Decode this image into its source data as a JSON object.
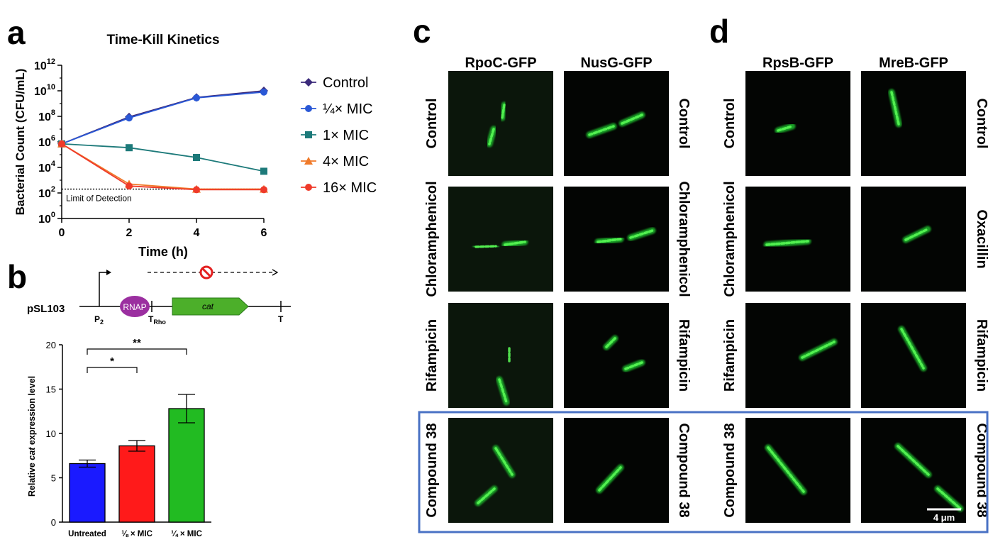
{
  "panels": {
    "a": {
      "letter": "a",
      "detection_label": "Limit of Detection",
      "detection_level": 200,
      "chart_data": {
        "type": "line",
        "title": "Time-Kill Kinetics",
        "xlabel": "Time (h)",
        "ylabel": "Bacterial Count (CFU/mL)",
        "x": [
          0,
          2,
          4,
          6
        ],
        "xlim": [
          0,
          6
        ],
        "ylim": [
          1,
          1000000000000
        ],
        "yscale": "log",
        "x_ticks": [
          "0",
          "2",
          "4",
          "6"
        ],
        "y_ticks": [
          {
            "base": "10",
            "exp": "0"
          },
          {
            "base": "10",
            "exp": "2"
          },
          {
            "base": "10",
            "exp": "4"
          },
          {
            "base": "10",
            "exp": "6"
          },
          {
            "base": "10",
            "exp": "8"
          },
          {
            "base": "10",
            "exp": "10"
          },
          {
            "base": "10",
            "exp": "12"
          }
        ],
        "legend_position": "right",
        "series": [
          {
            "name": "Control",
            "color": "#3b2a7a",
            "marker": "diamond",
            "values": [
              700000,
              90000000,
              3000000000,
              10000000000
            ]
          },
          {
            "name": "¼× MIC",
            "color": "#2a58d6",
            "marker": "circle",
            "values": [
              700000,
              75000000,
              2800000000,
              8000000000
            ]
          },
          {
            "name": "1× MIC",
            "color": "#1d7a7a",
            "marker": "square",
            "values": [
              700000,
              350000,
              60000,
              5000
            ]
          },
          {
            "name": "4× MIC",
            "color": "#f07a2a",
            "marker": "triangle",
            "values": [
              700000,
              500,
              200,
              200
            ]
          },
          {
            "name": "16× MIC",
            "color": "#ef3a2a",
            "marker": "circle",
            "values": [
              700000,
              350,
              180,
              180
            ]
          }
        ]
      }
    },
    "b": {
      "letter": "b",
      "plasmid": {
        "name": "pSL103",
        "promoter": "P",
        "promoter_sub": "2",
        "rnap": "RNAP",
        "terminator1": "T",
        "terminator1_sub": "Rho",
        "gene": "cat",
        "terminator2": "T",
        "colors": {
          "rnap": "#9b2fa0",
          "gene": "#4caf2a",
          "block": "#e32020"
        }
      },
      "significance": [
        "*",
        "**"
      ],
      "chart_data": {
        "type": "bar",
        "title": "",
        "xlabel": "",
        "ylabel_parts": [
          "Relative ",
          "cat",
          " expression level"
        ],
        "categories": [
          "Untreated",
          "⅛ × MIC",
          "¼ × MIC"
        ],
        "values": [
          6.6,
          8.6,
          12.8
        ],
        "errors": [
          0.4,
          0.6,
          1.6
        ],
        "colors": [
          "#1a1aff",
          "#ff1a1a",
          "#22bb22"
        ],
        "ylim": [
          0,
          20
        ],
        "y_ticks": [
          "0",
          "5",
          "10",
          "15",
          "20"
        ]
      }
    },
    "c": {
      "letter": "c",
      "columns": [
        "RpoC-GFP",
        "NusG-GFP"
      ],
      "left_labels": [
        "Control",
        "Chloramphenicol",
        "Rifampicin",
        "Compound 38"
      ],
      "right_labels": [
        "Control",
        "Chloramphenicol",
        "Rifampicin",
        "Compound 38"
      ]
    },
    "d": {
      "letter": "d",
      "columns": [
        "RpsB-GFP",
        "MreB-GFP"
      ],
      "left_labels": [
        "Control",
        "Chloramphenicol",
        "Rifampicin",
        "Compound 38"
      ],
      "right_labels": [
        "Control",
        "Oxacillin",
        "Rifampicin",
        "Compound 38"
      ],
      "scale_bar": "4 μm"
    }
  }
}
